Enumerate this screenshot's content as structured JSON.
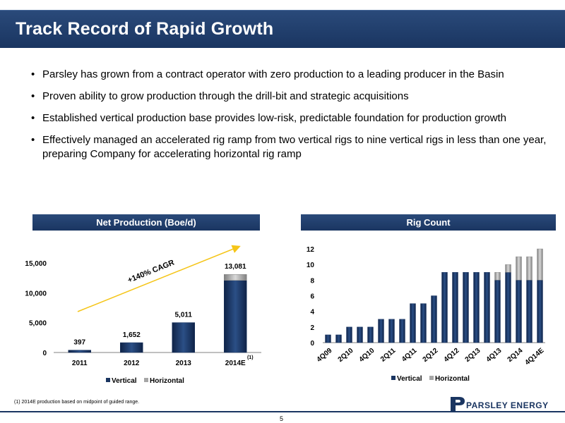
{
  "title": "Track Record of Rapid Growth",
  "bullets": [
    "Parsley has grown from a contract operator with zero production to a leading producer in the Basin",
    "Proven ability to grow production through the drill-bit and strategic acquisitions",
    "Established vertical production base provides low-risk, predictable foundation for production growth",
    "Effectively managed an accelerated rig ramp from two vertical rigs to nine vertical rigs in less than one year, preparing Company for accelerating horizontal rig ramp"
  ],
  "production_panel": {
    "header": "Net Production (Boe/d)"
  },
  "rig_panel": {
    "header": "Rig Count"
  },
  "footnote": "(1) 2014E production based on midpoint of guided range.",
  "page_number": "5",
  "logo_text": "PARSLEY ENERGY",
  "colors": {
    "navy": "#1a3561",
    "horizontal": "#a6a6a6",
    "arrow": "#f5c518"
  },
  "chart_data": [
    {
      "type": "bar",
      "stacked": true,
      "categories": [
        "2011",
        "2012",
        "2013",
        "2014E"
      ],
      "category_footnote": {
        "category": "2014E",
        "label": "(1)"
      },
      "series": [
        {
          "name": "Vertical",
          "values": [
            397,
            1652,
            5011,
            12081
          ]
        },
        {
          "name": "Horizontal",
          "values": [
            0,
            0,
            0,
            1000
          ]
        }
      ],
      "total_labels": [
        "397",
        "1,652",
        "5,011",
        "13,081"
      ],
      "yticks": [
        "0",
        "5,000",
        "10,000",
        "15,000"
      ],
      "ylim": [
        0,
        15000
      ],
      "annotation": "+140% CAGR",
      "legend": "bottom"
    },
    {
      "type": "bar",
      "stacked": true,
      "categories": [
        "4Q09",
        "1Q10",
        "2Q10",
        "3Q10",
        "4Q10",
        "1Q11",
        "2Q11",
        "3Q11",
        "4Q11",
        "1Q12",
        "2Q12",
        "3Q12",
        "4Q12",
        "1Q13",
        "2Q13",
        "3Q13",
        "4Q13",
        "1Q14",
        "2Q14",
        "3Q14",
        "4Q14E"
      ],
      "tick_labels": [
        "4Q09",
        "2Q10",
        "4Q10",
        "2Q11",
        "4Q11",
        "2Q12",
        "4Q12",
        "2Q13",
        "4Q13",
        "2Q14",
        "4Q14E"
      ],
      "series": [
        {
          "name": "Vertical",
          "values": [
            1,
            1,
            2,
            2,
            2,
            3,
            3,
            3,
            5,
            5,
            6,
            9,
            9,
            9,
            9,
            9,
            8,
            9,
            8,
            8,
            8
          ]
        },
        {
          "name": "Horizontal",
          "values": [
            0,
            0,
            0,
            0,
            0,
            0,
            0,
            0,
            0,
            0,
            0,
            0,
            0,
            0,
            0,
            0,
            1,
            1,
            3,
            3,
            4
          ]
        }
      ],
      "yticks": [
        "0",
        "2",
        "4",
        "6",
        "8",
        "10",
        "12"
      ],
      "ylim": [
        0,
        12
      ],
      "legend": "bottom"
    }
  ]
}
